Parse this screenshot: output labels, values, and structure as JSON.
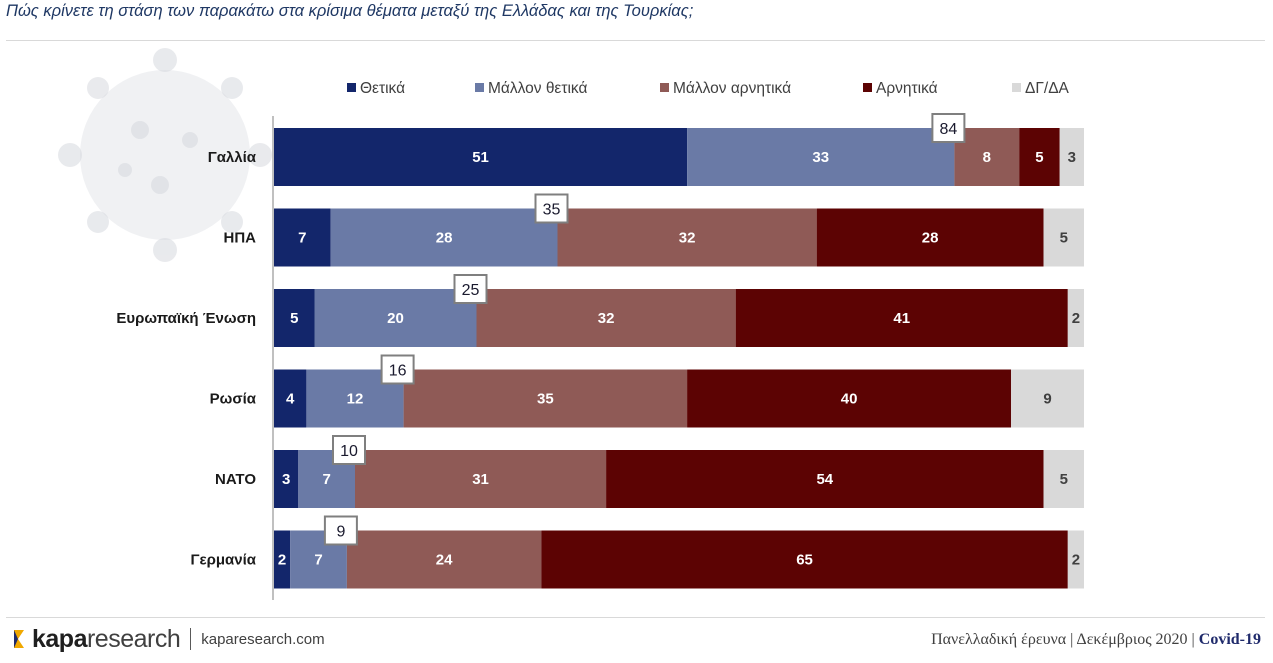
{
  "header": {
    "question": "Πώς κρίνετε τη στάση των παρακάτω στα κρίσιμα θέματα μεταξύ της Ελλάδας και της Τουρκίας;"
  },
  "chart_data": {
    "type": "bar",
    "orientation": "horizontal",
    "stacked": true,
    "title": "",
    "categories": [
      "Γαλλία",
      "ΗΠΑ",
      "Ευρωπαϊκή Ένωση",
      "Ρωσία",
      "ΝΑΤΟ",
      "Γερμανία"
    ],
    "series": [
      {
        "name": "Θετικά",
        "color": "#13266b",
        "values": [
          51,
          7,
          5,
          4,
          3,
          2
        ]
      },
      {
        "name": "Μάλλον θετικά",
        "color": "#6a7aa6",
        "values": [
          33,
          28,
          20,
          12,
          7,
          7
        ]
      },
      {
        "name": "Μάλλον αρνητικά",
        "color": "#8f5a56",
        "values": [
          8,
          32,
          32,
          35,
          31,
          24
        ]
      },
      {
        "name": "Αρνητικά",
        "color": "#5c0303",
        "values": [
          5,
          28,
          41,
          40,
          54,
          65
        ]
      },
      {
        "name": "ΔΓ/ΔΑ",
        "color": "#d9d9d9",
        "values": [
          3,
          5,
          2,
          9,
          5,
          2
        ]
      }
    ],
    "positive_totals": [
      84,
      35,
      25,
      16,
      10,
      9
    ],
    "legend_position": "top",
    "grid": false,
    "xlim": [
      0,
      100
    ]
  },
  "footer": {
    "brand_bold": "kapa",
    "brand_rest": "research",
    "url": "kaparesearch.com",
    "survey": "Πανελλαδική έρευνα | Δεκέμβριος 2020 | ",
    "topic": "Covid-19"
  }
}
